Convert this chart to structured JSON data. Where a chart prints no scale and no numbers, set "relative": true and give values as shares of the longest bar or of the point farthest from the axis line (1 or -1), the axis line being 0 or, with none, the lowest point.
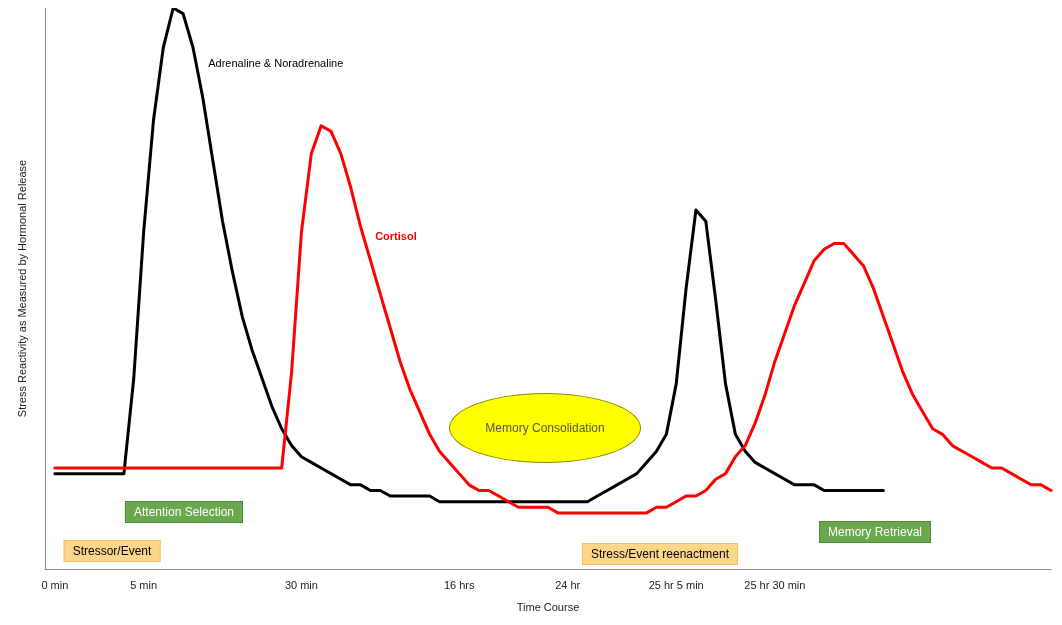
{
  "chart_data": {
    "type": "line",
    "relative": true,
    "xlabel": "Time Course",
    "ylabel": "Stress Reactivity as Measured by Hormonal Release",
    "categories": [
      null,
      "0 min",
      null,
      null,
      null,
      null,
      null,
      null,
      null,
      null,
      "5 min",
      null,
      null,
      null,
      null,
      null,
      null,
      null,
      null,
      null,
      null,
      null,
      null,
      null,
      null,
      null,
      "30 min",
      null,
      null,
      null,
      null,
      null,
      null,
      null,
      null,
      null,
      null,
      null,
      null,
      null,
      null,
      null,
      "16 hrs",
      null,
      null,
      null,
      null,
      null,
      null,
      null,
      null,
      null,
      null,
      "24 hr",
      null,
      null,
      null,
      null,
      null,
      null,
      null,
      null,
      null,
      null,
      "25 hr 5 min",
      null,
      null,
      null,
      null,
      null,
      null,
      null,
      null,
      null,
      "25 hr 30 min",
      null,
      null,
      null,
      null,
      null,
      null,
      null,
      null,
      null,
      null,
      null,
      null,
      null,
      null,
      null,
      null,
      null,
      null,
      null,
      null,
      null,
      null,
      null,
      null,
      null,
      null,
      null,
      null
    ],
    "grid": false,
    "legend": false,
    "marker": "none",
    "line_style": "solid",
    "series": [
      {
        "name": "Adrenaline & Noradrenaline",
        "color": "#000000",
        "values": [
          null,
          0.17,
          0.17,
          0.17,
          0.17,
          0.17,
          0.17,
          0.17,
          0.17,
          0.34,
          0.6,
          0.8,
          0.93,
          1.0,
          0.99,
          0.93,
          0.84,
          0.73,
          0.62,
          0.53,
          0.45,
          0.39,
          0.34,
          0.29,
          0.25,
          0.22,
          0.2,
          0.19,
          0.18,
          0.17,
          0.16,
          0.15,
          0.15,
          0.14,
          0.14,
          0.13,
          0.13,
          0.13,
          0.13,
          0.13,
          0.12,
          0.12,
          0.12,
          0.12,
          0.12,
          0.12,
          0.12,
          0.12,
          0.12,
          0.12,
          0.12,
          0.12,
          0.12,
          0.12,
          0.12,
          0.12,
          0.13,
          0.14,
          0.15,
          0.16,
          0.17,
          0.19,
          0.21,
          0.24,
          0.33,
          0.5,
          0.64,
          0.62,
          0.48,
          0.33,
          0.24,
          0.21,
          0.19,
          0.18,
          0.17,
          0.16,
          0.15,
          0.15,
          0.15,
          0.14,
          0.14,
          0.14,
          0.14,
          0.14,
          0.14,
          0.14,
          null,
          null,
          null,
          null,
          null,
          null,
          null,
          null,
          null,
          null,
          null,
          null,
          null,
          null,
          null,
          null,
          null
        ]
      },
      {
        "name": "Cortisol",
        "color": "#ff0000",
        "values": [
          null,
          0.18,
          0.18,
          0.18,
          0.18,
          0.18,
          0.18,
          0.18,
          0.18,
          0.18,
          0.18,
          0.18,
          0.18,
          0.18,
          0.18,
          0.18,
          0.18,
          0.18,
          0.18,
          0.18,
          0.18,
          0.18,
          0.18,
          0.18,
          0.18,
          0.35,
          0.6,
          0.74,
          0.79,
          0.78,
          0.74,
          0.68,
          0.61,
          0.55,
          0.49,
          0.43,
          0.37,
          0.32,
          0.28,
          0.24,
          0.21,
          0.19,
          0.17,
          0.15,
          0.14,
          0.14,
          0.13,
          0.12,
          0.11,
          0.11,
          0.11,
          0.11,
          0.1,
          0.1,
          0.1,
          0.1,
          0.1,
          0.1,
          0.1,
          0.1,
          0.1,
          0.1,
          0.11,
          0.11,
          0.12,
          0.13,
          0.13,
          0.14,
          0.16,
          0.17,
          0.2,
          0.22,
          0.26,
          0.31,
          0.37,
          0.42,
          0.47,
          0.51,
          0.55,
          0.57,
          0.58,
          0.58,
          0.56,
          0.54,
          0.5,
          0.45,
          0.4,
          0.35,
          0.31,
          0.28,
          0.25,
          0.24,
          0.22,
          0.21,
          0.2,
          0.19,
          0.18,
          0.18,
          0.17,
          0.16,
          0.15,
          0.15,
          0.14
        ]
      }
    ],
    "annotations": [
      "Memory Consolidation",
      "Attention Selection",
      "Memory Retrieval",
      "Stressor/Event",
      "Stress/Event reenactment"
    ]
  }
}
